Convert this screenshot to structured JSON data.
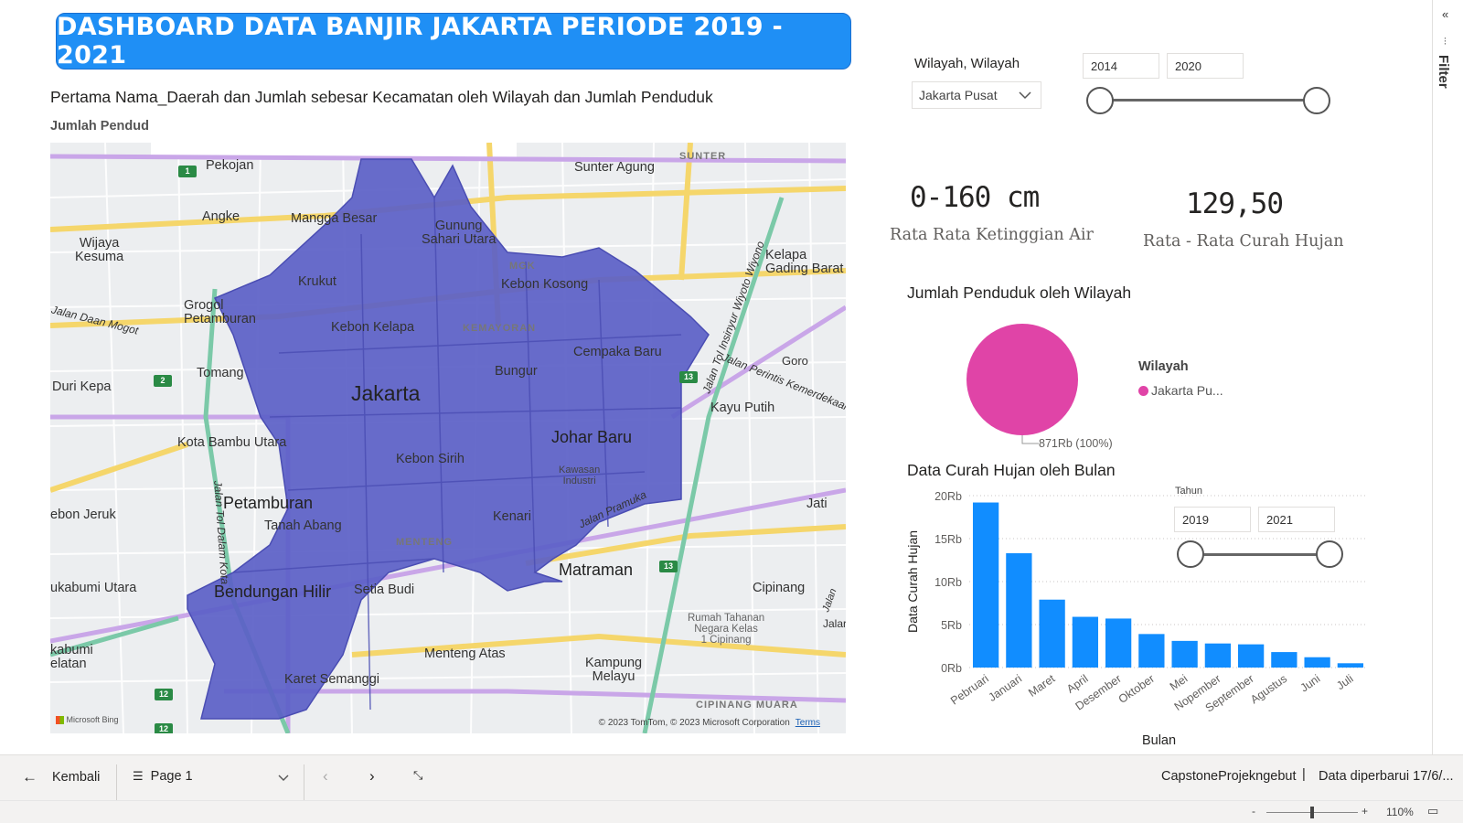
{
  "banner": {
    "title": "DASHBOARD DATA BANJIR JAKARTA PERIODE 2019 - 2021"
  },
  "map": {
    "title": "Pertama Nama_Daerah dan Jumlah sebesar Kecamatan oleh Wilayah dan Jumlah Penduduk",
    "subtitle": "Jumlah Pendud",
    "region_fill": "#5b5fc7",
    "credit": "© 2023 TomTom, © 2023 Microsoft Corporation",
    "terms": "Terms",
    "logo": "Microsoft Bing",
    "labels": {
      "pekojan": "Pekojan",
      "sunter_agung": "Sunter Agung",
      "sunter": "SUNTER",
      "angke": "Angke",
      "mangga_besar": "Mangga Besar",
      "gunung_sahari": "Gunung\nSahari Utara",
      "wijaya_kesuma": "Wijaya\nKesuma",
      "kelapa_gading": "Kelapa\nGading Barat",
      "krukut": "Krukut",
      "mgk": "MGK",
      "kebon_kosong": "Kebon Kosong",
      "grogol": "Grogol\nPetamburan",
      "jalan_daan_mogot": "Jalan Daan Mogot",
      "kebon_kelapa": "Kebon Kelapa",
      "kemayoran": "KEMAYORAN",
      "cempaka_baru": "Cempaka Baru",
      "goro": "Goro",
      "tomang": "Tomang",
      "bungur": "Bungur",
      "jalan_perintis": "Jalan Perintis Kemerdekaan",
      "duri_kepa": "Duri Kepa",
      "jakarta": "Jakarta",
      "kayu_putih": "Kayu Putih",
      "johar_baru": "Johar Baru",
      "kota_bambu": "Kota Bambu Utara",
      "kebon_sirih": "Kebon Sirih",
      "kawasan": "Kawasan\nIndustri",
      "jalan_tol_dalam_kota": "Jalan Tol Dalam Kota",
      "jalan_pramuka": "Jalan Pramuka",
      "jalan_wiyoto": "Jalan Tol Insinyur Wiyoto Wiyono",
      "petamburan": "Petamburan",
      "tanah_abang": "Tanah Abang",
      "jati": "Jati",
      "kebon_jeruk": "ebon Jeruk",
      "kenari": "Kenari",
      "menteng_caps": "MENTENG",
      "matraman": "Matraman",
      "sukabumi": "ukabumi Utara",
      "bendungan": "Bendungan Hilir",
      "setia_budi": "Setia Budi",
      "cipinang": "Cipinang",
      "rumah_tahanan": "Rumah Tahanan\nNegara Kelas\n1 Cipinang",
      "jalan_jala": "Jalan",
      "jalar": "Jalar",
      "kabumi": "kabumi\nelatan",
      "menteng_atas": "Menteng Atas",
      "kampung_melayu": "Kampung\nMelayu",
      "karet": "Karet Semanggi",
      "cipinang_muara": "CIPINANG MUARA",
      "jatinegara": "Jatinegara"
    },
    "shields": {
      "s1": "1",
      "s2": "2",
      "s13a": "13",
      "s13b": "13",
      "s12a": "12",
      "s12b": "12"
    }
  },
  "slicer": {
    "title": "Wilayah, Wilayah",
    "selected": "Jakarta Pusat",
    "year_from": "2014",
    "year_to": "2020"
  },
  "kpis": {
    "water_value": "0-160 cm",
    "water_label": "Rata Rata Ketinggian Air",
    "rain_value": "129,50",
    "rain_label": "Rata - Rata Curah Hujan"
  },
  "pie": {
    "title": "Jumlah Penduduk oleh Wilayah",
    "legend_title": "Wilayah",
    "legend_item": "Jakarta Pu...",
    "data_label": "871Rb (100%)",
    "color": "#e044a7"
  },
  "chart_data": {
    "type": "bar",
    "title": "Data Curah Hujan oleh Bulan",
    "xlabel": "Bulan",
    "ylabel": "Data Curah Hujan",
    "categories": [
      "Pebruari",
      "Januari",
      "Maret",
      "April",
      "Desember",
      "Oktober",
      "Mei",
      "Nopember",
      "September",
      "Agustus",
      "Juni",
      "Juli"
    ],
    "values": [
      19200,
      13300,
      7900,
      5900,
      5700,
      3900,
      3100,
      2800,
      2700,
      1800,
      1200,
      500
    ],
    "ylim": [
      0,
      20000
    ],
    "yticks": [
      "0Rb",
      "5Rb",
      "10Rb",
      "15Rb",
      "20Rb"
    ],
    "ytick_values": [
      0,
      5000,
      10000,
      15000,
      20000
    ],
    "color": "#118dff",
    "grid": true
  },
  "tahun_slicer": {
    "label": "Tahun",
    "from": "2019",
    "to": "2021"
  },
  "filter_pane": {
    "label": "Filter"
  },
  "navbar": {
    "back": "Kembali",
    "page": "Page 1",
    "report_name": "CapstoneProjekngebut",
    "updated": "Data diperbarui 17/6/..."
  },
  "status": {
    "zoom": "110%",
    "minus": "-",
    "plus": "+"
  }
}
